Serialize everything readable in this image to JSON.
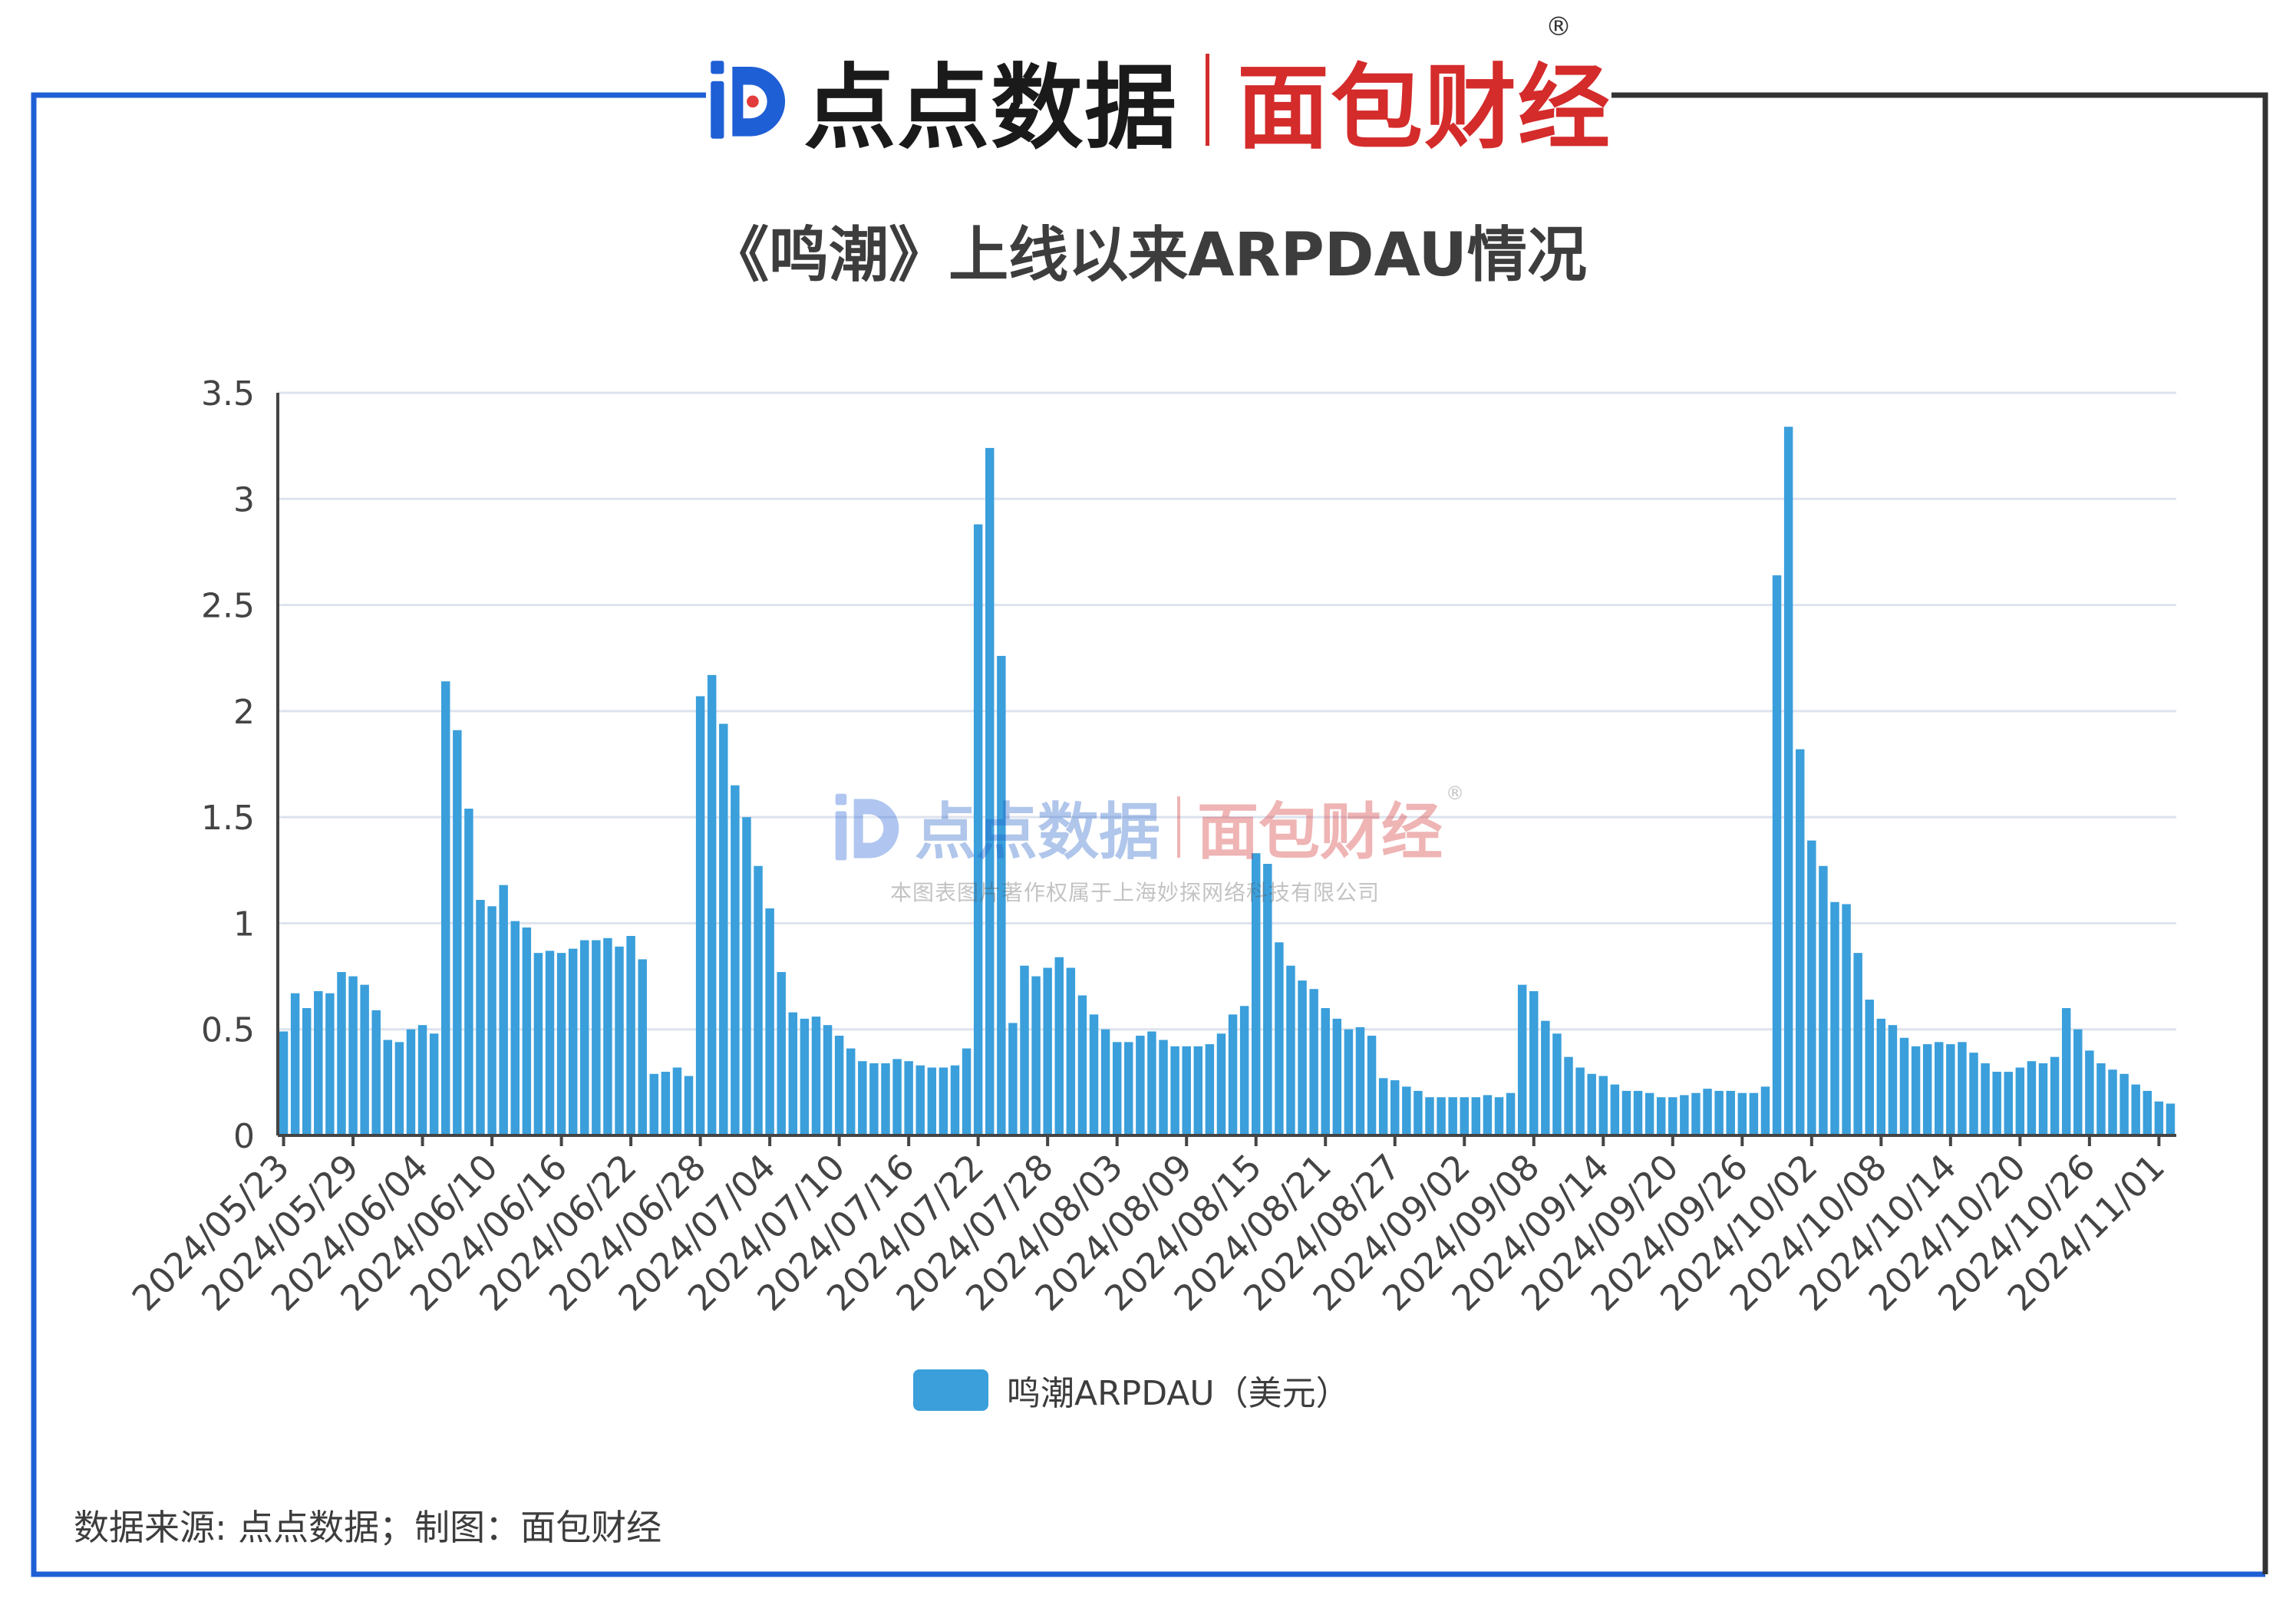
{
  "header": {
    "brand_dd": "点点数据",
    "brand_mb": "面包财经",
    "registered": "®"
  },
  "watermark": {
    "brand_dd": "点点数据",
    "brand_mb": "面包财经",
    "registered": "®",
    "copyright": "本图表图片著作权属于上海妙探网络科技有限公司"
  },
  "footer": {
    "source": "数据来源: 点点数据；制图：面包财经"
  },
  "colors": {
    "bar": "#3a9fdb",
    "frame_blue": "#1f5fd6",
    "frame_dark": "#333333",
    "brand_red": "#d42b2b",
    "grid": "#dde3ee"
  },
  "chart_data": {
    "type": "bar",
    "title": "《鸣潮》上线以来ARPDAU情况",
    "series_name": "鸣潮ARPDAU（美元）",
    "ylim": [
      0,
      3.5
    ],
    "yticks": [
      "0",
      "0.5",
      "1",
      "1.5",
      "2",
      "2.5",
      "3",
      "3.5"
    ],
    "ytick_values": [
      0,
      0.5,
      1,
      1.5,
      2,
      2.5,
      3,
      3.5
    ],
    "grid": true,
    "legend_position": "bottom-center",
    "start_date": "2024/05/23",
    "xtick_labels": [
      "2024/05/23",
      "2024/05/29",
      "2024/06/04",
      "2024/06/10",
      "2024/06/16",
      "2024/06/22",
      "2024/06/28",
      "2024/07/04",
      "2024/07/10",
      "2024/07/16",
      "2024/07/22",
      "2024/07/28",
      "2024/08/03",
      "2024/08/09",
      "2024/08/15",
      "2024/08/21",
      "2024/08/27",
      "2024/09/02",
      "2024/09/08",
      "2024/09/14",
      "2024/09/20",
      "2024/09/26",
      "2024/10/02",
      "2024/10/08",
      "2024/10/14",
      "2024/10/20",
      "2024/10/26",
      "2024/11/01"
    ],
    "values": [
      0.49,
      0.67,
      0.6,
      0.68,
      0.67,
      0.77,
      0.75,
      0.71,
      0.59,
      0.45,
      0.44,
      0.5,
      0.52,
      0.48,
      2.14,
      1.91,
      1.54,
      1.11,
      1.08,
      1.18,
      1.01,
      0.98,
      0.86,
      0.87,
      0.86,
      0.88,
      0.92,
      0.92,
      0.93,
      0.89,
      0.94,
      0.83,
      0.29,
      0.3,
      0.32,
      0.28,
      2.07,
      2.17,
      1.94,
      1.65,
      1.5,
      1.27,
      1.07,
      0.77,
      0.58,
      0.55,
      0.56,
      0.52,
      0.47,
      0.41,
      0.35,
      0.34,
      0.34,
      0.36,
      0.35,
      0.33,
      0.32,
      0.32,
      0.33,
      0.41,
      2.88,
      3.24,
      2.26,
      0.53,
      0.8,
      0.75,
      0.79,
      0.84,
      0.79,
      0.66,
      0.57,
      0.5,
      0.44,
      0.44,
      0.47,
      0.49,
      0.45,
      0.42,
      0.42,
      0.42,
      0.43,
      0.48,
      0.57,
      0.61,
      1.33,
      1.28,
      0.91,
      0.8,
      0.73,
      0.69,
      0.6,
      0.55,
      0.5,
      0.51,
      0.47,
      0.27,
      0.26,
      0.23,
      0.21,
      0.18,
      0.18,
      0.18,
      0.18,
      0.18,
      0.19,
      0.18,
      0.2,
      0.71,
      0.68,
      0.54,
      0.48,
      0.37,
      0.32,
      0.29,
      0.28,
      0.24,
      0.21,
      0.21,
      0.2,
      0.18,
      0.18,
      0.19,
      0.2,
      0.22,
      0.21,
      0.21,
      0.2,
      0.2,
      0.23,
      2.64,
      3.34,
      1.82,
      1.39,
      1.27,
      1.1,
      1.09,
      0.86,
      0.64,
      0.55,
      0.52,
      0.46,
      0.42,
      0.43,
      0.44,
      0.43,
      0.44,
      0.39,
      0.34,
      0.3,
      0.3,
      0.32,
      0.35,
      0.34,
      0.37,
      0.6,
      0.5,
      0.4,
      0.34,
      0.31,
      0.29,
      0.24,
      0.21,
      0.16,
      0.15
    ]
  }
}
